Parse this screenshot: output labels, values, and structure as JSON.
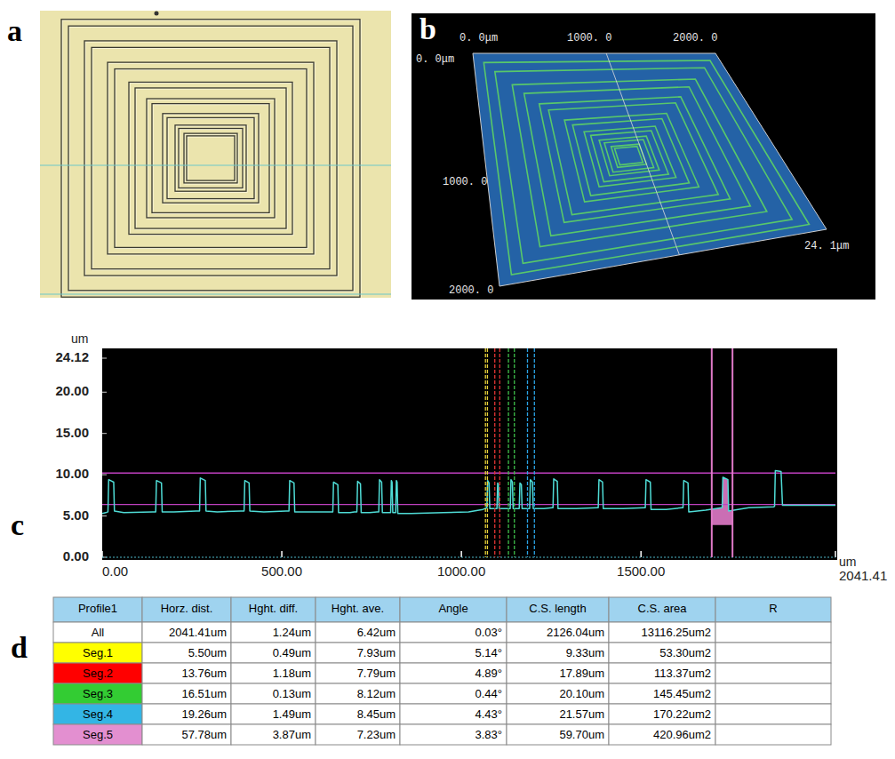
{
  "panels": {
    "a": {
      "label": "a"
    },
    "b": {
      "label": "b",
      "texts": [
        "0. 0μm",
        "1000. 0",
        "2000. 0",
        "0. 0μm",
        "1000. 0",
        "2000. 0",
        "24. 1μm"
      ]
    },
    "c": {
      "label": "c"
    },
    "d": {
      "label": "d"
    }
  },
  "chart_data": {
    "type": "line",
    "ylabel": "um",
    "xlabel": "um",
    "color": "#4fdcd6",
    "grid": false,
    "xlim": [
      0,
      2041.41
    ],
    "ylim": [
      0,
      24.12
    ],
    "xticks": [
      {
        "value": 0,
        "label": "0.00"
      },
      {
        "value": 500,
        "label": "500.00"
      },
      {
        "value": 1000,
        "label": "1000.00"
      },
      {
        "value": 1500,
        "label": "1500.00"
      },
      2041.41
    ],
    "yticks": [
      {
        "value": 0,
        "label": "0.00"
      },
      {
        "value": 5,
        "label": "5.00"
      },
      {
        "value": 10,
        "label": "10.00"
      },
      {
        "value": 15,
        "label": "15.00"
      },
      {
        "value": 20,
        "label": "20.00"
      },
      24.12
    ],
    "x": [
      0,
      10,
      16,
      18,
      32,
      34,
      60,
      140,
      149,
      151,
      165,
      167,
      200,
      262,
      271,
      273,
      287,
      289,
      320,
      386,
      395,
      397,
      409,
      411,
      450,
      512,
      520,
      522,
      534,
      536,
      580,
      634,
      642,
      644,
      656,
      658,
      690,
      702,
      709,
      711,
      719,
      721,
      745,
      765,
      770,
      772,
      778,
      780,
      795,
      801,
      803,
      805,
      807,
      809,
      813,
      817,
      819,
      821,
      823,
      860,
      950,
      1020,
      1060,
      1071,
      1073,
      1077,
      1079,
      1090,
      1097,
      1099,
      1101,
      1103,
      1105,
      1125,
      1134,
      1136,
      1138,
      1142,
      1144,
      1155,
      1159,
      1161,
      1163,
      1167,
      1169,
      1182,
      1188,
      1190,
      1192,
      1198,
      1200,
      1230,
      1253,
      1255,
      1257,
      1267,
      1269,
      1320,
      1379,
      1381,
      1383,
      1393,
      1395,
      1450,
      1510,
      1512,
      1514,
      1526,
      1528,
      1570,
      1615,
      1617,
      1619,
      1631,
      1633,
      1680,
      1724,
      1726,
      1728,
      1742,
      1744,
      1800,
      1870,
      1872,
      1874,
      1890,
      1894,
      1950,
      2041.41
    ],
    "values": [
      5.3,
      5.4,
      5.5,
      9.4,
      9.1,
      5.6,
      5.4,
      5.5,
      5.5,
      9.3,
      9.0,
      5.5,
      5.5,
      5.6,
      5.6,
      9.6,
      9.3,
      5.6,
      5.5,
      5.6,
      5.6,
      9.3,
      9.0,
      5.6,
      5.5,
      5.6,
      5.6,
      9.3,
      9.0,
      5.5,
      5.5,
      5.5,
      5.5,
      9.1,
      8.8,
      5.4,
      5.4,
      5.5,
      5.5,
      9.2,
      8.9,
      5.4,
      5.4,
      5.5,
      5.5,
      9.4,
      9.1,
      5.4,
      5.4,
      5.4,
      5.4,
      9.3,
      9.1,
      5.4,
      5.4,
      5.4,
      9.3,
      9.1,
      5.3,
      5.3,
      5.4,
      5.5,
      5.8,
      6.0,
      9.3,
      9.0,
      5.9,
      5.9,
      5.9,
      5.9,
      9.0,
      8.8,
      5.9,
      5.9,
      5.9,
      5.9,
      9.4,
      9.1,
      5.9,
      5.9,
      5.9,
      5.9,
      9.0,
      8.8,
      5.9,
      5.9,
      5.9,
      5.9,
      9.4,
      9.1,
      5.9,
      5.9,
      6.0,
      6.0,
      9.5,
      9.2,
      5.9,
      5.9,
      6.0,
      6.0,
      9.4,
      9.1,
      5.9,
      5.9,
      6.0,
      6.0,
      9.4,
      9.1,
      5.8,
      5.8,
      6.0,
      6.0,
      9.3,
      9.0,
      5.5,
      5.7,
      6.0,
      6.0,
      9.7,
      9.4,
      5.6,
      6.0,
      6.1,
      6.2,
      10.5,
      10.4,
      6.3,
      6.3,
      6.3
    ],
    "reference_lines": [
      10.2,
      6.4
    ],
    "segments": [
      {
        "color": "#e8d23a",
        "line_style": "dashed",
        "x": [
          1067,
          1072.5
        ]
      },
      {
        "color": "#e03434",
        "line_style": "dashed",
        "x": [
          1093,
          1106.76
        ]
      },
      {
        "color": "#3ec04a",
        "line_style": "dashed",
        "x": [
          1131,
          1147.51
        ]
      },
      {
        "color": "#2aa4e6",
        "line_style": "dashed",
        "x": [
          1184,
          1203.26
        ]
      },
      {
        "color": "#e07ac8",
        "line_style": "solid",
        "x": [
          1697,
          1754.78
        ],
        "area_base": 3.9
      }
    ]
  },
  "table": {
    "header": [
      "Profile1",
      "Horz. dist.",
      "Hght. diff.",
      "Hght. ave.",
      "Angle",
      "C.S. length",
      "C.S. area",
      "R"
    ],
    "row_colors": [
      "#ffffff",
      "#ffff00",
      "#ff0000",
      "#33cc33",
      "#33b5e5",
      "#e38fd0"
    ],
    "rows": [
      [
        "All",
        "2041.41um",
        "1.24um",
        "6.42um",
        "0.03°",
        "2126.04um",
        "13116.25um2",
        ""
      ],
      [
        "Seg.1",
        "5.50um",
        "0.49um",
        "7.93um",
        "5.14°",
        "9.33um",
        "53.30um2",
        ""
      ],
      [
        "Seg.2",
        "13.76um",
        "1.18um",
        "7.79um",
        "4.89°",
        "17.89um",
        "113.37um2",
        ""
      ],
      [
        "Seg.3",
        "16.51um",
        "0.13um",
        "8.12um",
        "0.44°",
        "20.10um",
        "145.45um2",
        ""
      ],
      [
        "Seg.4",
        "19.26um",
        "1.49um",
        "8.45um",
        "4.43°",
        "21.57um",
        "170.22um2",
        ""
      ],
      [
        "Seg.5",
        "57.78um",
        "3.87um",
        "7.23um",
        "3.83°",
        "59.70um",
        "420.96um2",
        ""
      ]
    ]
  }
}
